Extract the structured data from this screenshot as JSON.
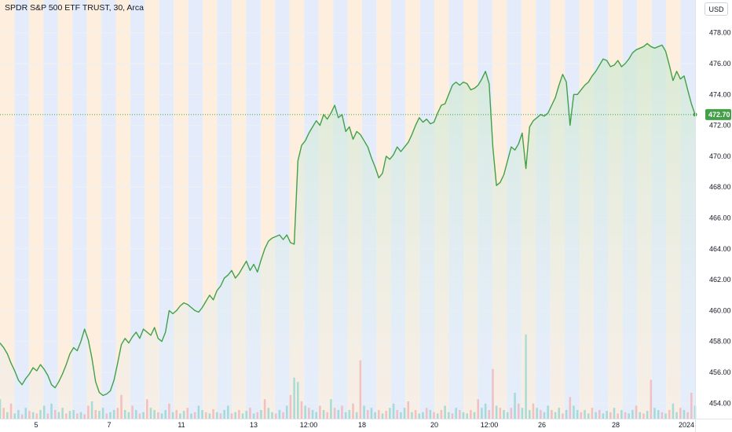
{
  "header": {
    "title": "SPDR S&P 500 ETF TRUST, 30, Arca",
    "currency_button": "USD"
  },
  "colors": {
    "line": "#43a047",
    "area_top": "#cfe9cf",
    "area_bottom": "#e8f0fb",
    "stripe_blue": "#e4ecfb",
    "stripe_orange": "#fdeedd",
    "vol_up": "#7fcfc4",
    "vol_down": "#f3a3a3",
    "last_label_bg": "#43a047",
    "grid": "#eef0f3",
    "axis_border": "#e0e3eb"
  },
  "chart_data": {
    "type": "area",
    "title": "SPDR S&P 500 ETF TRUST, 30, Arca",
    "ylim": [
      453,
      479
    ],
    "y_ticks": [
      "454.00",
      "456.00",
      "458.00",
      "460.00",
      "462.00",
      "464.00",
      "466.00",
      "468.00",
      "470.00",
      "472.00",
      "474.00",
      "476.00",
      "478.00"
    ],
    "x_tick_labels": [
      "5",
      "7",
      "11",
      "13",
      "12:00",
      "18",
      "20",
      "12:00",
      "26",
      "28",
      "2024"
    ],
    "last_value": 472.7,
    "last_value_label": "472.70",
    "series": [
      {
        "values": [
          457.9,
          457.6,
          457.2,
          456.6,
          456.1,
          455.5,
          455.2,
          455.6,
          455.9,
          456.3,
          456.1,
          456.5,
          456.2,
          455.8,
          455.2,
          455.0,
          455.4,
          455.9,
          456.5,
          457.2,
          457.6,
          457.4,
          458.0,
          458.8,
          458.1,
          456.9,
          455.4,
          454.7,
          454.5,
          454.6,
          454.8,
          455.5,
          456.6,
          457.8,
          458.2,
          457.9,
          458.3,
          458.6,
          458.2,
          458.8,
          458.6,
          458.4,
          458.9,
          458.2,
          458.0,
          458.6,
          460.0,
          459.8,
          460.0,
          460.3,
          460.5,
          460.4,
          460.2,
          460.0,
          459.9,
          460.2,
          460.6,
          461.0,
          460.7,
          461.3,
          461.6,
          462.1,
          462.3,
          462.6,
          462.1,
          462.4,
          462.8,
          463.2,
          462.6,
          463.0,
          462.5,
          463.3,
          464.0,
          464.5,
          464.7,
          464.8,
          464.9,
          464.6,
          464.9,
          464.4,
          464.3,
          469.7,
          470.7,
          471.0,
          471.5,
          471.9,
          472.3,
          472.0,
          472.7,
          472.4,
          472.8,
          473.3,
          472.5,
          472.7,
          471.6,
          471.9,
          471.1,
          471.6,
          471.4,
          471.0,
          470.6,
          469.9,
          469.3,
          468.6,
          468.9,
          470.0,
          469.8,
          470.1,
          470.6,
          470.3,
          470.6,
          470.9,
          471.4,
          472.0,
          472.5,
          472.2,
          472.4,
          472.1,
          472.2,
          472.8,
          473.3,
          473.4,
          474.0,
          474.6,
          474.8,
          474.6,
          474.8,
          474.7,
          474.3,
          474.4,
          474.6,
          475.0,
          475.5,
          474.7,
          470.6,
          468.1,
          468.3,
          468.8,
          469.7,
          470.6,
          470.4,
          470.8,
          471.5,
          469.2,
          471.9,
          472.3,
          472.5,
          472.7,
          472.6,
          472.8,
          473.3,
          473.8,
          474.6,
          475.3,
          474.8,
          472.0,
          474.0,
          474.0,
          474.3,
          474.6,
          474.8,
          475.2,
          475.5,
          475.9,
          476.3,
          476.2,
          475.8,
          475.9,
          476.2,
          475.8,
          476.0,
          476.3,
          476.7,
          476.9,
          477.0,
          477.1,
          477.3,
          477.1,
          477.0,
          477.1,
          477.2,
          476.8,
          475.9,
          474.9,
          475.5,
          475.0,
          475.2,
          474.3,
          473.4,
          472.7
        ]
      }
    ],
    "volume": {
      "values": [
        0.45,
        0.25,
        0.15,
        0.35,
        0.12,
        0.2,
        0.1,
        0.25,
        0.18,
        0.15,
        0.12,
        0.2,
        0.3,
        0.12,
        0.35,
        0.2,
        0.15,
        0.25,
        0.12,
        0.18,
        0.2,
        0.12,
        0.15,
        0.1,
        0.3,
        0.4,
        0.2,
        0.18,
        0.25,
        0.12,
        0.15,
        0.2,
        0.25,
        0.55,
        0.2,
        0.15,
        0.3,
        0.2,
        0.12,
        0.15,
        0.45,
        0.25,
        0.2,
        0.15,
        0.12,
        0.2,
        0.35,
        0.15,
        0.2,
        0.12,
        0.18,
        0.25,
        0.12,
        0.15,
        0.3,
        0.2,
        0.15,
        0.12,
        0.22,
        0.15,
        0.12,
        0.2,
        0.3,
        0.12,
        0.15,
        0.2,
        0.12,
        0.18,
        0.25,
        0.12,
        0.15,
        0.2,
        0.45,
        0.25,
        0.15,
        0.12,
        0.2,
        0.15,
        0.3,
        0.55,
        0.95,
        0.85,
        0.4,
        0.3,
        0.25,
        0.2,
        0.15,
        0.3,
        0.2,
        0.15,
        0.45,
        0.25,
        0.2,
        0.3,
        0.15,
        0.2,
        0.35,
        0.15,
        1.35,
        0.3,
        0.2,
        0.25,
        0.15,
        0.2,
        0.12,
        0.18,
        0.25,
        0.35,
        0.2,
        0.15,
        0.25,
        0.4,
        0.15,
        0.2,
        0.12,
        0.15,
        0.25,
        0.2,
        0.15,
        0.12,
        0.2,
        0.3,
        0.15,
        0.12,
        0.25,
        0.2,
        0.15,
        0.12,
        0.2,
        0.15,
        0.45,
        0.25,
        0.35,
        0.2,
        1.15,
        0.3,
        0.25,
        0.2,
        0.15,
        0.25,
        0.6,
        0.35,
        0.25,
        1.95,
        0.2,
        0.35,
        0.25,
        0.2,
        0.15,
        0.3,
        0.2,
        0.15,
        0.25,
        0.12,
        0.2,
        0.5,
        0.3,
        0.2,
        0.15,
        0.2,
        0.12,
        0.25,
        0.15,
        0.2,
        0.12,
        0.18,
        0.15,
        0.25,
        0.12,
        0.2,
        0.15,
        0.12,
        0.2,
        0.3,
        0.15,
        0.12,
        0.18,
        0.9,
        0.25,
        0.2,
        0.15,
        0.12,
        0.2,
        0.35,
        0.15,
        0.25,
        0.2,
        0.15,
        0.6,
        0.3
      ],
      "down": [
        false,
        true,
        false,
        true,
        false,
        false,
        true,
        false,
        true,
        false,
        true,
        false,
        false,
        true,
        false,
        true,
        false,
        false,
        true,
        false,
        false,
        true,
        false,
        true,
        true,
        false,
        true,
        false,
        false,
        true,
        false,
        false,
        true,
        true,
        false,
        false,
        true,
        false,
        true,
        false,
        true,
        false,
        false,
        true,
        false,
        false,
        true,
        false,
        true,
        false,
        false,
        true,
        false,
        true,
        false,
        false,
        true,
        false,
        true,
        false,
        true,
        false,
        false,
        true,
        false,
        true,
        false,
        false,
        true,
        false,
        true,
        false,
        true,
        false,
        false,
        true,
        false,
        true,
        false,
        true,
        false,
        false,
        true,
        false,
        true,
        false,
        false,
        true,
        false,
        true,
        false,
        true,
        false,
        true,
        false,
        false,
        true,
        false,
        true,
        false,
        true,
        false,
        false,
        true,
        false,
        true,
        false,
        false,
        true,
        false,
        false,
        true,
        false,
        true,
        false,
        false,
        true,
        false,
        true,
        false,
        true,
        false,
        false,
        true,
        false,
        true,
        false,
        false,
        true,
        false,
        true,
        false,
        false,
        true,
        true,
        false,
        true,
        false,
        false,
        true,
        false,
        true,
        false,
        false,
        false,
        true,
        false,
        true,
        false,
        false,
        true,
        false,
        false,
        true,
        false,
        true,
        false,
        false,
        true,
        false,
        false,
        true,
        false,
        true,
        false,
        false,
        true,
        false,
        true,
        false,
        true,
        false,
        false,
        true,
        false,
        true,
        false,
        true,
        false,
        false,
        true,
        false,
        true,
        false,
        false,
        true,
        false,
        true,
        true,
        false
      ],
      "max": 2.0
    },
    "session_stripes": [
      "orange",
      "blue",
      "orange",
      "blue",
      "orange",
      "blue",
      "orange",
      "blue",
      "orange",
      "blue",
      "orange",
      "blue",
      "orange",
      "blue",
      "orange",
      "blue",
      "orange",
      "blue",
      "orange",
      "blue",
      "orange",
      "blue",
      "orange",
      "blue",
      "orange",
      "blue",
      "orange",
      "blue",
      "orange",
      "blue",
      "orange",
      "blue",
      "orange",
      "blue",
      "orange",
      "blue",
      "orange",
      "blue",
      "orange",
      "blue",
      "orange",
      "blue",
      "orange",
      "blue",
      "orange",
      "blue",
      "orange",
      "blue"
    ]
  }
}
